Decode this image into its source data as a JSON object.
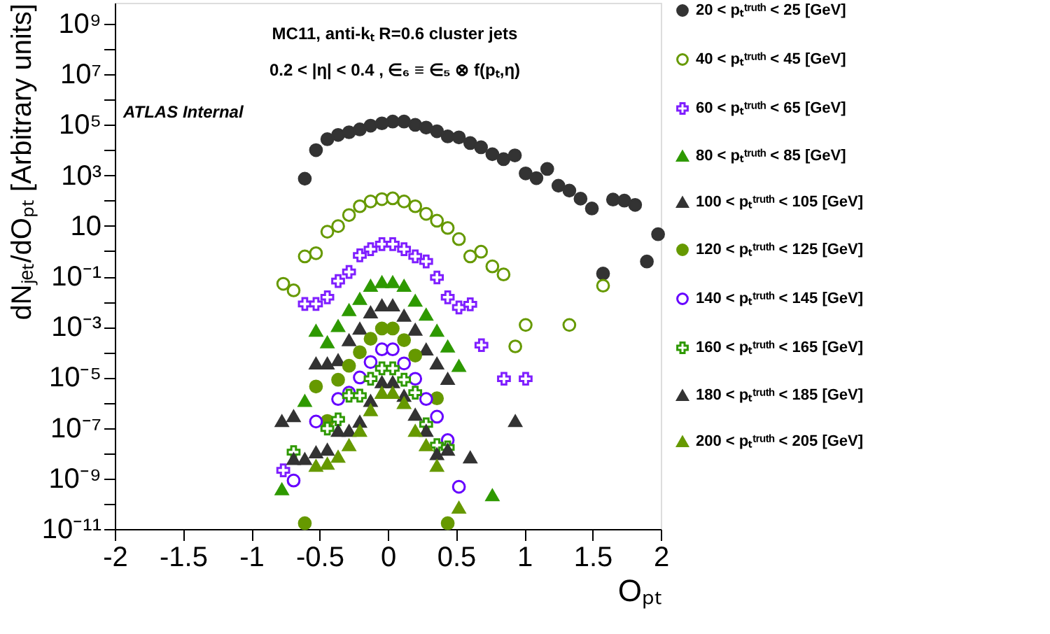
{
  "chart_data": {
    "type": "scatter",
    "annotations": [
      "MC11, anti-kₜ R=0.6 cluster jets",
      "0.2 < |η| < 0.4 , ∈₆ ≡ ∈₅ ⊗ f(pₜ,η)",
      "ATLAS Internal"
    ],
    "xlabel": "Oₚₜ",
    "ylabel": "dNⱼₑₜ/dOₚₜ [Arbitrary units]",
    "log": "y",
    "grid": false,
    "legend": "right",
    "xlim": [
      -2,
      2
    ],
    "xticks": [
      -2,
      -1.5,
      -1,
      -0.5,
      0,
      0.5,
      1,
      1.5,
      2
    ],
    "ylim": [
      1e-11,
      6800000000.0
    ],
    "yticks": [
      {
        "value": 1e-11,
        "label": "10⁻¹¹"
      },
      {
        "value": 1e-10,
        "label": null
      },
      {
        "value": 1e-09,
        "label": "10⁻⁹"
      },
      {
        "value": 1e-08,
        "label": null
      },
      {
        "value": 1e-07,
        "label": "10⁻⁷"
      },
      {
        "value": 1e-06,
        "label": null
      },
      {
        "value": 1e-05,
        "label": "10⁻⁵"
      },
      {
        "value": 0.0001,
        "label": null
      },
      {
        "value": 0.001,
        "label": "10⁻³"
      },
      {
        "value": 0.01,
        "label": null
      },
      {
        "value": 0.1,
        "label": "10⁻¹"
      },
      {
        "value": 1,
        "label": null
      },
      10,
      {
        "value": 100,
        "label": null
      },
      {
        "value": 1000.0,
        "label": "10³"
      },
      {
        "value": 10000.0,
        "label": null
      },
      {
        "value": 100000.0,
        "label": "10⁵"
      },
      {
        "value": 1000000.0,
        "label": null
      },
      {
        "value": 10000000.0,
        "label": "10⁷"
      },
      {
        "value": 100000000.0,
        "label": null
      },
      {
        "value": 1000000000.0,
        "label": "10⁹"
      }
    ],
    "series": [
      {
        "name": "20 < pₜᵗʳᵘᵗʰ < 25 [GeV]",
        "color": "#333333",
        "marker": "circle",
        "x": [
          -0.608,
          -0.526,
          -0.443,
          -0.364,
          -0.284,
          -0.205,
          -0.126,
          -0.043,
          0.036,
          0.119,
          0.201,
          0.281,
          0.36,
          0.439,
          0.521,
          0.604,
          0.683,
          0.766,
          0.848,
          0.931,
          1.01,
          1.089,
          1.168,
          1.25,
          1.33,
          1.412,
          1.495,
          1.577,
          1.65,
          1.733,
          1.812,
          1.898,
          1.98
        ],
        "values": [
          740,
          10000.0,
          27000.0,
          40000.0,
          51000.0,
          66000.0,
          93000.0,
          115000.0,
          135000.0,
          135000.0,
          100000.0,
          78000.0,
          56000.0,
          35000.0,
          32000.0,
          19000.0,
          13000.0,
          6900.0,
          4400.0,
          6200.0,
          1200.0,
          780,
          1800.0,
          390,
          250,
          120,
          49,
          0.13,
          110,
          100,
          68,
          0.39,
          4.7
        ]
      },
      {
        "name": "40 < pₜᵗʳᵘᵗʰ < 45 [GeV]",
        "color": "#669900",
        "marker": "open circle",
        "x": [
          -0.766,
          -0.69,
          -0.608,
          -0.526,
          -0.443,
          -0.364,
          -0.284,
          -0.205,
          -0.126,
          -0.043,
          0.036,
          0.119,
          0.201,
          0.281,
          0.36,
          0.439,
          0.521,
          0.604,
          0.683,
          0.766,
          0.848,
          0.934,
          1.01,
          1.33,
          1.577
        ],
        "values": [
          0.051,
          0.028,
          0.62,
          0.83,
          5.9,
          9.8,
          27,
          60,
          93,
          115,
          123,
          93,
          60,
          30,
          16,
          8.3,
          3.0,
          0.62,
          0.95,
          0.25,
          0.12,
          0.00017,
          0.0012,
          0.0012,
          0.043
        ]
      },
      {
        "name": "60 < pₜᵗʳᵘᵗʰ < 65 [GeV]",
        "color": "#7f1fff",
        "marker": "cross",
        "x": [
          -0.766,
          -0.608,
          -0.526,
          -0.443,
          -0.364,
          -0.284,
          -0.205,
          -0.126,
          -0.043,
          0.036,
          0.119,
          0.201,
          0.281,
          0.36,
          0.439,
          0.521,
          0.604,
          0.686,
          0.851,
          1.01
        ],
        "values": [
          2.1e-09,
          0.0081,
          0.0081,
          0.015,
          0.066,
          0.15,
          0.68,
          1.2,
          1.9,
          1.9,
          1.2,
          0.62,
          0.39,
          0.091,
          0.015,
          0.0059,
          0.0079,
          0.00019,
          8.9e-06,
          8.9e-06
        ]
      },
      {
        "name": "80 < pₜᵗʳᵘᵗʰ < 85 [GeV]",
        "color": "#2e9900",
        "marker": "triangle",
        "x": [
          -0.776,
          -0.608,
          -0.526,
          -0.443,
          -0.364,
          -0.284,
          -0.205,
          -0.126,
          -0.043,
          0.036,
          0.119,
          0.201,
          0.281,
          0.36,
          0.439,
          0.521,
          0.766
        ],
        "values": [
          3.8e-10,
          1.2e-06,
          0.00071,
          0.00025,
          0.0011,
          0.0047,
          0.013,
          0.043,
          0.06,
          0.06,
          0.043,
          0.011,
          0.0031,
          0.00071,
          0.00017,
          2.9e-05,
          2.2e-10
        ]
      },
      {
        "name": "100 < pₜᵗʳᵘᵗʰ < 105 [GeV]",
        "color": "#333333",
        "marker": "triangle",
        "x": [
          -0.776,
          -0.69,
          -0.526,
          -0.443,
          -0.364,
          -0.284,
          -0.205,
          -0.126,
          -0.043,
          0.036,
          0.119,
          0.201,
          0.281,
          0.36,
          0.439,
          0.934
        ],
        "values": [
          1.9e-07,
          3e-07,
          3.6e-05,
          3.6e-05,
          4.9e-05,
          0.0003,
          0.00087,
          0.0038,
          0.0072,
          0.0072,
          0.0028,
          0.00079,
          0.00013,
          3.6e-05,
          8.9e-06,
          1.9e-07
        ]
      },
      {
        "name": "120 < pₜᵗʳᵘᵗʰ < 125 [GeV]",
        "color": "#669900",
        "marker": "circle",
        "x": [
          -0.608,
          -0.526,
          -0.443,
          -0.364,
          -0.284,
          -0.205,
          -0.126,
          -0.043,
          0.036,
          0.119,
          0.201,
          0.36,
          0.439
        ],
        "values": [
          1.7e-11,
          4.4e-06,
          1.9e-07,
          8.1e-06,
          2.9e-05,
          0.0001,
          0.00034,
          0.00087,
          0.00087,
          0.0003,
          7.4e-05,
          1.5e-06,
          1.7e-11
        ]
      },
      {
        "name": "140 < pₜᵗʳᵘᵗʰ < 145 [GeV]",
        "color": "#6600ff",
        "marker": "open circle",
        "x": [
          -0.69,
          -0.526,
          -0.364,
          -0.284,
          -0.205,
          -0.126,
          -0.043,
          0.036,
          0.119,
          0.201,
          0.281,
          0.36,
          0.439,
          0.521
        ],
        "values": [
          8.3e-10,
          1.8e-07,
          1.4e-06,
          2.5e-06,
          1e-05,
          4.1e-05,
          0.00013,
          0.00013,
          3.6e-05,
          8.9e-06,
          1.4e-06,
          2.8e-07,
          3.3e-08,
          4.7e-10
        ]
      },
      {
        "name": "160 < pₜᵗʳᵘᵗʰ < 165 [GeV]",
        "color": "#2e9900",
        "marker": "cross",
        "x": [
          -0.69,
          -0.443,
          -0.364,
          -0.284,
          -0.205,
          -0.126,
          -0.043,
          0.036,
          0.119,
          0.201,
          0.281,
          0.36,
          0.439
        ],
        "values": [
          1.1e-08,
          9.5e-08,
          2.2e-07,
          1.9e-06,
          1.9e-06,
          8.9e-06,
          2.3e-05,
          2.3e-05,
          8.1e-06,
          2.5e-06,
          1.4e-07,
          2.1e-08,
          1.7e-08
        ]
      },
      {
        "name": "180 < pₜᵗʳᵘᵗʰ < 185 [GeV]",
        "color": "#333333",
        "marker": "triangle",
        "x": [
          -0.69,
          -0.608,
          -0.526,
          -0.443,
          -0.364,
          -0.284,
          -0.205,
          -0.126,
          -0.043,
          0.036,
          0.119,
          0.201,
          0.281,
          0.36,
          0.439,
          0.604
        ],
        "values": [
          6e-09,
          6e-09,
          1.1e-08,
          1.4e-08,
          7.8e-08,
          7.8e-08,
          1.8e-07,
          1.2e-06,
          6.6e-06,
          6.6e-06,
          1.9e-06,
          3.4e-07,
          7.8e-08,
          9.3e-09,
          1.4e-08,
          6.9e-09
        ]
      },
      {
        "name": "200 < pₜᵗʳᵘᵗʰ < 205 [GeV]",
        "color": "#669900",
        "marker": "triangle",
        "x": [
          -0.526,
          -0.443,
          -0.364,
          -0.284,
          -0.205,
          -0.126,
          -0.043,
          0.036,
          0.119,
          0.201,
          0.281,
          0.36,
          0.521
        ],
        "values": [
          3.2e-09,
          3.9e-09,
          7.4e-09,
          2.1e-08,
          7.8e-08,
          5.1e-07,
          2.5e-06,
          2.5e-06,
          9.8e-07,
          7.8e-08,
          2.1e-08,
          3.2e-09,
          7.1e-11
        ]
      }
    ]
  }
}
